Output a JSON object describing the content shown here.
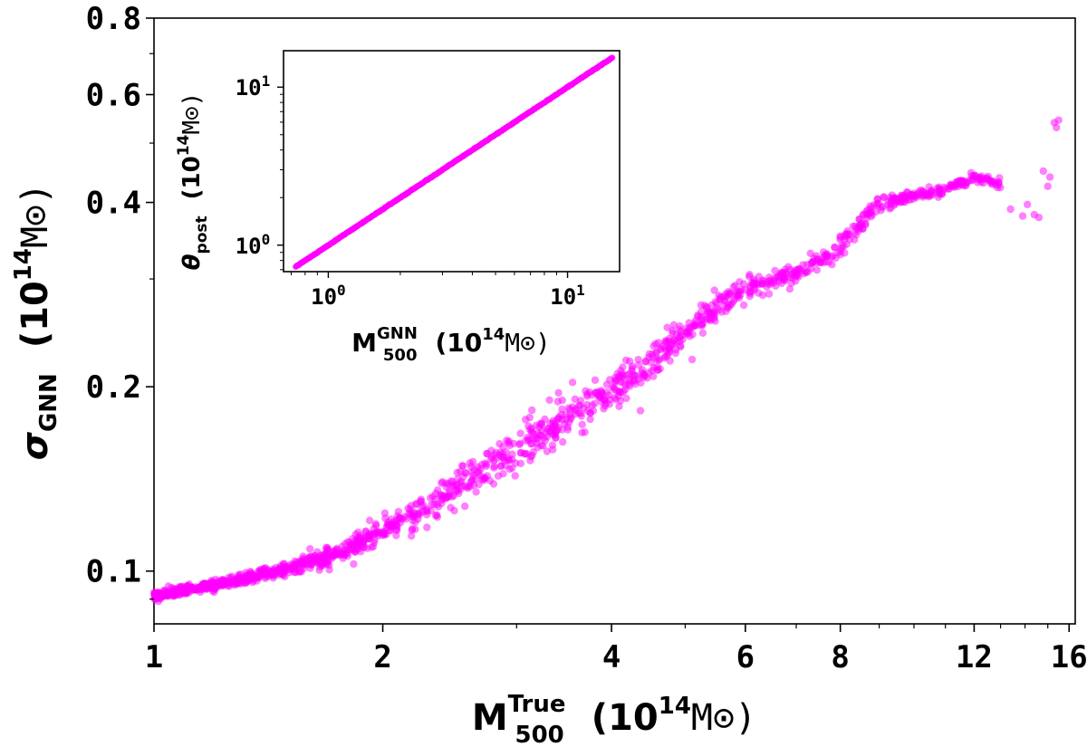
{
  "chart_data": [
    {
      "id": "main",
      "type": "scatter",
      "xscale": "log",
      "yscale": "log",
      "xlim": [
        1.0,
        16.3
      ],
      "ylim": [
        0.082,
        0.8
      ],
      "xticks": [
        1,
        2,
        4,
        6,
        8,
        12,
        16
      ],
      "xtick_labels": [
        "1",
        "2",
        "4",
        "6",
        "8",
        "12",
        "16"
      ],
      "yticks": [
        0.1,
        0.2,
        0.4,
        0.6,
        0.8
      ],
      "ytick_labels": [
        "0.1",
        "0.2",
        "0.4",
        "0.6",
        "0.8"
      ],
      "xlabel": {
        "main": "M",
        "sub": "500",
        "sup": "True",
        "unit_open": "(10",
        "unit_exp": "14",
        "unit_close": "M⊙)"
      },
      "ylabel": {
        "main": "σ",
        "sub": "GNN",
        "unit_open": "(10",
        "unit_exp": "14",
        "unit_close": "M⊙)"
      },
      "color": "#ff00ff",
      "alpha": 0.5,
      "series_anchors": {
        "x": [
          1.0,
          1.1,
          1.25,
          1.5,
          1.75,
          2.0,
          2.3,
          2.6,
          3.0,
          3.5,
          4.0,
          4.5,
          5.0,
          5.5,
          6.0,
          7.0,
          8.0,
          9.0,
          10.0,
          11.0,
          12.0,
          13.0
        ],
        "y": [
          0.091,
          0.093,
          0.096,
          0.101,
          0.107,
          0.117,
          0.127,
          0.141,
          0.158,
          0.178,
          0.197,
          0.218,
          0.245,
          0.27,
          0.29,
          0.305,
          0.335,
          0.4,
          0.41,
          0.42,
          0.44,
          0.43
        ],
        "n_points": 1500,
        "scatter_sigma_log": [
          0.018,
          0.018,
          0.022,
          0.03,
          0.04,
          0.045,
          0.06,
          0.075,
          0.085,
          0.085,
          0.08,
          0.08,
          0.07,
          0.06,
          0.05,
          0.045,
          0.045,
          0.03,
          0.02,
          0.02,
          0.02,
          0.02
        ]
      },
      "extra_points": [
        {
          "x": 13.4,
          "y": 0.39
        },
        {
          "x": 13.9,
          "y": 0.38
        },
        {
          "x": 14.1,
          "y": 0.397
        },
        {
          "x": 14.4,
          "y": 0.382
        },
        {
          "x": 14.6,
          "y": 0.378
        },
        {
          "x": 14.8,
          "y": 0.45
        },
        {
          "x": 15.0,
          "y": 0.425
        },
        {
          "x": 15.1,
          "y": 0.44
        },
        {
          "x": 15.3,
          "y": 0.54
        },
        {
          "x": 15.4,
          "y": 0.53
        },
        {
          "x": 15.5,
          "y": 0.545
        }
      ]
    },
    {
      "id": "inset",
      "type": "scatter",
      "xscale": "log",
      "yscale": "log",
      "xlim": [
        0.65,
        16.5
      ],
      "ylim": [
        0.68,
        17
      ],
      "xticks": [
        1,
        10
      ],
      "xtick_labels": [
        {
          "base": "10",
          "exp": "0"
        },
        {
          "base": "10",
          "exp": "1"
        }
      ],
      "yticks": [
        1,
        10
      ],
      "ytick_labels": [
        {
          "base": "10",
          "exp": "0"
        },
        {
          "base": "10",
          "exp": "1"
        }
      ],
      "xlabel": {
        "main": "M",
        "sub": "500",
        "sup": "GNN",
        "unit_open": "(10",
        "unit_exp": "14",
        "unit_close": "M⊙)"
      },
      "ylabel": {
        "main": "θ",
        "sub": "post",
        "unit_open": "(10",
        "unit_exp": "14",
        "unit_close": "M⊙)"
      },
      "color": "#ff00ff",
      "alpha": 0.6,
      "line": {
        "x_start": 0.73,
        "x_end": 15.4,
        "slope": 1.0,
        "n_points": 800
      }
    }
  ]
}
